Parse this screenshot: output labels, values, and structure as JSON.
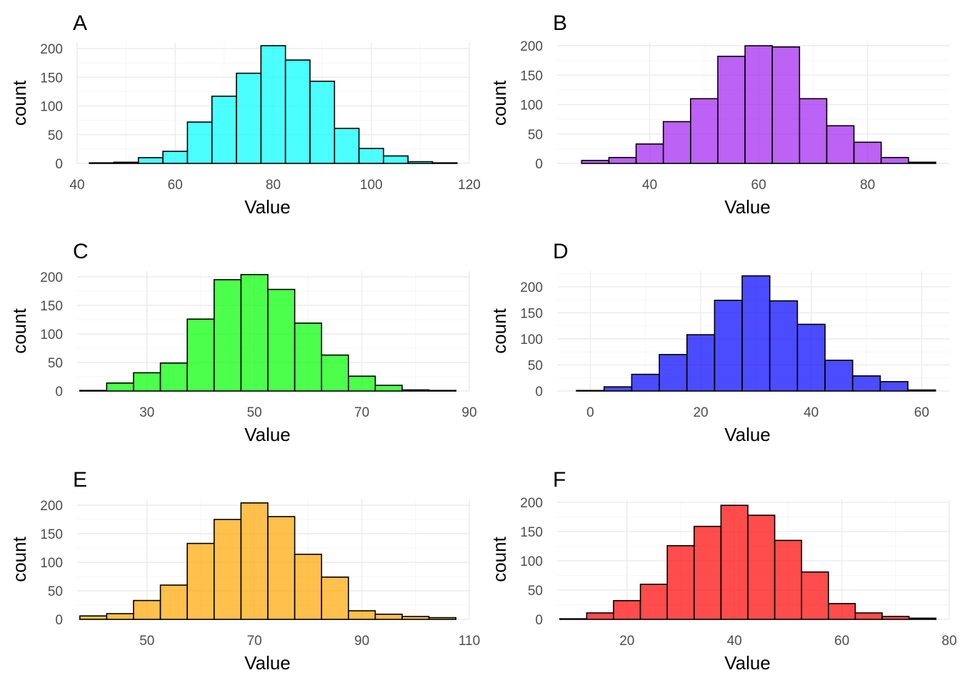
{
  "chart_data": [
    {
      "panel": "A",
      "type": "bar",
      "fill": "#00FFFF",
      "opacity": 0.7,
      "xlabel": "Value",
      "ylabel": "count",
      "xlim": [
        40,
        120
      ],
      "ylim": [
        0,
        210
      ],
      "x_ticks": [
        40,
        60,
        80,
        100,
        120
      ],
      "y_ticks": [
        0,
        50,
        100,
        150,
        200
      ],
      "bins": [
        {
          "start": 42.5,
          "end": 47.5,
          "count": 1
        },
        {
          "start": 47.5,
          "end": 52.5,
          "count": 2
        },
        {
          "start": 52.5,
          "end": 57.5,
          "count": 10
        },
        {
          "start": 57.5,
          "end": 62.5,
          "count": 21
        },
        {
          "start": 62.5,
          "end": 67.5,
          "count": 72
        },
        {
          "start": 67.5,
          "end": 72.5,
          "count": 117
        },
        {
          "start": 72.5,
          "end": 77.5,
          "count": 157
        },
        {
          "start": 77.5,
          "end": 82.5,
          "count": 205
        },
        {
          "start": 82.5,
          "end": 87.5,
          "count": 180
        },
        {
          "start": 87.5,
          "end": 92.5,
          "count": 143
        },
        {
          "start": 92.5,
          "end": 97.5,
          "count": 61
        },
        {
          "start": 97.5,
          "end": 102.5,
          "count": 26
        },
        {
          "start": 102.5,
          "end": 107.5,
          "count": 13
        },
        {
          "start": 107.5,
          "end": 112.5,
          "count": 3
        },
        {
          "start": 112.5,
          "end": 117.5,
          "count": 1
        }
      ]
    },
    {
      "panel": "B",
      "type": "bar",
      "fill": "#A020F0",
      "opacity": 0.7,
      "xlabel": "Value",
      "ylabel": "count",
      "xlim": [
        23,
        95
      ],
      "ylim": [
        0,
        205
      ],
      "x_ticks": [
        40,
        60,
        80
      ],
      "y_ticks": [
        0,
        50,
        100,
        150,
        200
      ],
      "bins": [
        {
          "start": 27.5,
          "end": 32.5,
          "count": 5
        },
        {
          "start": 32.5,
          "end": 37.5,
          "count": 10
        },
        {
          "start": 37.5,
          "end": 42.5,
          "count": 33
        },
        {
          "start": 42.5,
          "end": 47.5,
          "count": 71
        },
        {
          "start": 47.5,
          "end": 52.5,
          "count": 110
        },
        {
          "start": 52.5,
          "end": 57.5,
          "count": 182
        },
        {
          "start": 57.5,
          "end": 62.5,
          "count": 200
        },
        {
          "start": 62.5,
          "end": 67.5,
          "count": 198
        },
        {
          "start": 67.5,
          "end": 72.5,
          "count": 110
        },
        {
          "start": 72.5,
          "end": 77.5,
          "count": 64
        },
        {
          "start": 77.5,
          "end": 82.5,
          "count": 36
        },
        {
          "start": 82.5,
          "end": 87.5,
          "count": 10
        },
        {
          "start": 87.5,
          "end": 92.5,
          "count": 2
        }
      ]
    },
    {
      "panel": "C",
      "type": "bar",
      "fill": "#00FF00",
      "opacity": 0.7,
      "xlabel": "Value",
      "ylabel": "count",
      "xlim": [
        17,
        90
      ],
      "ylim": [
        0,
        210
      ],
      "x_ticks": [
        30,
        50,
        70,
        90
      ],
      "y_ticks": [
        0,
        50,
        100,
        150,
        200
      ],
      "bins": [
        {
          "start": 17.5,
          "end": 22.5,
          "count": 1
        },
        {
          "start": 22.5,
          "end": 27.5,
          "count": 14
        },
        {
          "start": 27.5,
          "end": 32.5,
          "count": 32
        },
        {
          "start": 32.5,
          "end": 37.5,
          "count": 49
        },
        {
          "start": 37.5,
          "end": 42.5,
          "count": 126
        },
        {
          "start": 42.5,
          "end": 47.5,
          "count": 195
        },
        {
          "start": 47.5,
          "end": 52.5,
          "count": 204
        },
        {
          "start": 52.5,
          "end": 57.5,
          "count": 178
        },
        {
          "start": 57.5,
          "end": 62.5,
          "count": 119
        },
        {
          "start": 62.5,
          "end": 67.5,
          "count": 63
        },
        {
          "start": 67.5,
          "end": 72.5,
          "count": 26
        },
        {
          "start": 72.5,
          "end": 77.5,
          "count": 10
        },
        {
          "start": 77.5,
          "end": 82.5,
          "count": 2
        },
        {
          "start": 82.5,
          "end": 87.5,
          "count": 1
        }
      ]
    },
    {
      "panel": "D",
      "type": "bar",
      "fill": "#0000FF",
      "opacity": 0.7,
      "xlabel": "Value",
      "ylabel": "count",
      "xlim": [
        -6,
        65
      ],
      "ylim": [
        0,
        230
      ],
      "x_ticks": [
        0,
        20,
        40,
        60
      ],
      "y_ticks": [
        0,
        50,
        100,
        150,
        200
      ],
      "bins": [
        {
          "start": -2.5,
          "end": 2.5,
          "count": 1
        },
        {
          "start": 2.5,
          "end": 7.5,
          "count": 8
        },
        {
          "start": 7.5,
          "end": 12.5,
          "count": 32
        },
        {
          "start": 12.5,
          "end": 17.5,
          "count": 70
        },
        {
          "start": 17.5,
          "end": 22.5,
          "count": 108
        },
        {
          "start": 22.5,
          "end": 27.5,
          "count": 174
        },
        {
          "start": 27.5,
          "end": 32.5,
          "count": 221
        },
        {
          "start": 32.5,
          "end": 37.5,
          "count": 173
        },
        {
          "start": 37.5,
          "end": 42.5,
          "count": 128
        },
        {
          "start": 42.5,
          "end": 47.5,
          "count": 59
        },
        {
          "start": 47.5,
          "end": 52.5,
          "count": 29
        },
        {
          "start": 52.5,
          "end": 57.5,
          "count": 18
        },
        {
          "start": 57.5,
          "end": 62.5,
          "count": 2
        }
      ]
    },
    {
      "panel": "E",
      "type": "bar",
      "fill": "#FFA500",
      "opacity": 0.7,
      "xlabel": "Value",
      "ylabel": "count",
      "xlim": [
        37,
        110
      ],
      "ylim": [
        0,
        210
      ],
      "x_ticks": [
        50,
        70,
        90,
        110
      ],
      "y_ticks": [
        0,
        50,
        100,
        150,
        200
      ],
      "bins": [
        {
          "start": 37.5,
          "end": 42.5,
          "count": 6
        },
        {
          "start": 42.5,
          "end": 47.5,
          "count": 10
        },
        {
          "start": 47.5,
          "end": 52.5,
          "count": 33
        },
        {
          "start": 52.5,
          "end": 57.5,
          "count": 60
        },
        {
          "start": 57.5,
          "end": 62.5,
          "count": 133
        },
        {
          "start": 62.5,
          "end": 67.5,
          "count": 175
        },
        {
          "start": 67.5,
          "end": 72.5,
          "count": 204
        },
        {
          "start": 72.5,
          "end": 77.5,
          "count": 180
        },
        {
          "start": 77.5,
          "end": 82.5,
          "count": 114
        },
        {
          "start": 82.5,
          "end": 87.5,
          "count": 74
        },
        {
          "start": 87.5,
          "end": 92.5,
          "count": 15
        },
        {
          "start": 92.5,
          "end": 97.5,
          "count": 9
        },
        {
          "start": 97.5,
          "end": 102.5,
          "count": 5
        },
        {
          "start": 102.5,
          "end": 107.5,
          "count": 3
        }
      ]
    },
    {
      "panel": "F",
      "type": "bar",
      "fill": "#FF0000",
      "opacity": 0.7,
      "xlabel": "Value",
      "ylabel": "count",
      "xlim": [
        7,
        80
      ],
      "ylim": [
        0,
        205
      ],
      "x_ticks": [
        20,
        40,
        60,
        80
      ],
      "y_ticks": [
        0,
        50,
        100,
        150,
        200
      ],
      "bins": [
        {
          "start": 7.5,
          "end": 12.5,
          "count": 1
        },
        {
          "start": 12.5,
          "end": 17.5,
          "count": 11
        },
        {
          "start": 17.5,
          "end": 22.5,
          "count": 32
        },
        {
          "start": 22.5,
          "end": 27.5,
          "count": 60
        },
        {
          "start": 27.5,
          "end": 32.5,
          "count": 126
        },
        {
          "start": 32.5,
          "end": 37.5,
          "count": 159
        },
        {
          "start": 37.5,
          "end": 42.5,
          "count": 195
        },
        {
          "start": 42.5,
          "end": 47.5,
          "count": 178
        },
        {
          "start": 47.5,
          "end": 52.5,
          "count": 135
        },
        {
          "start": 52.5,
          "end": 57.5,
          "count": 81
        },
        {
          "start": 57.5,
          "end": 62.5,
          "count": 27
        },
        {
          "start": 62.5,
          "end": 67.5,
          "count": 11
        },
        {
          "start": 67.5,
          "end": 72.5,
          "count": 5
        },
        {
          "start": 72.5,
          "end": 77.5,
          "count": 2
        }
      ]
    }
  ]
}
